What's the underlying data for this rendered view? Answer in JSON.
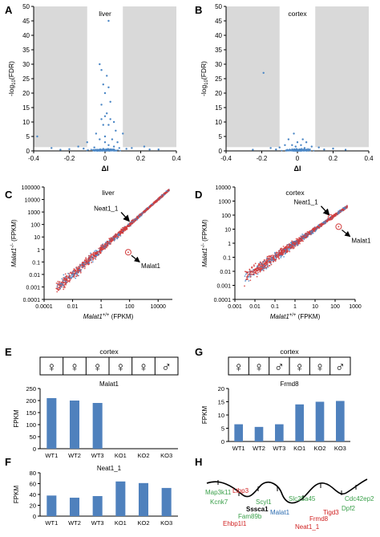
{
  "panel_letters": [
    "A",
    "B",
    "C",
    "D",
    "E",
    "G",
    "F",
    "H"
  ],
  "colors": {
    "point_blue": "#4a86c5",
    "point_red": "#d23c3c",
    "bar_blue": "#4f81bd",
    "shade": "#d9d9d9",
    "arrow": "#000000",
    "gene_red": "#d02020",
    "gene_green": "#3aa04a",
    "gene_blue": "#2a6bb0",
    "gene_black": "#000000"
  },
  "sex_symbols": {
    "female": "♀",
    "male": "♂"
  },
  "chart_data": [
    {
      "id": "A",
      "type": "scatter",
      "title": "liver",
      "xlabel": "ΔI",
      "ylabel": "-log10(FDR)",
      "ylabel_main": "-log",
      "ylabel_sub": "10",
      "ylabel_tail": "(FDR)",
      "xlim": [
        -0.4,
        0.4
      ],
      "ylim": [
        0,
        50
      ],
      "xticks": [
        -0.4,
        -0.2,
        0,
        0.2,
        0.4
      ],
      "yticks": [
        0,
        5,
        10,
        15,
        20,
        25,
        30,
        35,
        40,
        45,
        50
      ],
      "shaded_x": [
        [
          -0.4,
          -0.1
        ],
        [
          0.1,
          0.4
        ]
      ],
      "shade_ymin": 1.3,
      "points": [
        [
          0.02,
          45
        ],
        [
          -0.03,
          30
        ],
        [
          -0.02,
          28
        ],
        [
          0.01,
          26
        ],
        [
          -0.01,
          23
        ],
        [
          0.02,
          22
        ],
        [
          0.0,
          20
        ],
        [
          0.03,
          17
        ],
        [
          -0.02,
          16
        ],
        [
          0.01,
          13
        ],
        [
          0.0,
          12
        ],
        [
          -0.02,
          11
        ],
        [
          0.03,
          11
        ],
        [
          0.05,
          10
        ],
        [
          -0.01,
          9
        ],
        [
          0.02,
          9
        ],
        [
          0.06,
          7
        ],
        [
          -0.05,
          6
        ],
        [
          0.1,
          6
        ],
        [
          -0.38,
          5
        ],
        [
          0.0,
          5
        ],
        [
          0.04,
          4
        ],
        [
          -0.03,
          4
        ],
        [
          -0.1,
          3
        ],
        [
          0.07,
          3
        ],
        [
          0.0,
          3
        ],
        [
          0.02,
          2
        ],
        [
          -0.15,
          1.5
        ],
        [
          0.22,
          1.5
        ],
        [
          -0.3,
          1
        ],
        [
          0.15,
          1
        ],
        [
          0.05,
          1.5
        ],
        [
          -0.06,
          1.2
        ],
        [
          0.08,
          1
        ],
        [
          -0.2,
          0.6
        ],
        [
          0.3,
          0.5
        ],
        [
          -0.12,
          0.8
        ],
        [
          0.12,
          0.7
        ],
        [
          0.25,
          0.5
        ],
        [
          -0.25,
          0.4
        ]
      ]
    },
    {
      "id": "B",
      "type": "scatter",
      "title": "cortex",
      "xlabel": "ΔI",
      "ylabel": "-log10(FDR)",
      "ylabel_main": "-log",
      "ylabel_sub": "10",
      "ylabel_tail": "(FDR)",
      "xlim": [
        -0.4,
        0.4
      ],
      "ylim": [
        0,
        50
      ],
      "xticks": [
        -0.4,
        -0.2,
        0,
        0.2,
        0.4
      ],
      "yticks": [
        0,
        5,
        10,
        15,
        20,
        25,
        30,
        35,
        40,
        45,
        50
      ],
      "shaded_x": [
        [
          -0.4,
          -0.1
        ],
        [
          0.1,
          0.4
        ]
      ],
      "shade_ymin": 1.3,
      "points": [
        [
          -0.19,
          27
        ],
        [
          -0.02,
          6
        ],
        [
          0.03,
          4
        ],
        [
          -0.05,
          4
        ],
        [
          0.0,
          3
        ],
        [
          0.05,
          3
        ],
        [
          -0.03,
          2
        ],
        [
          0.02,
          2
        ],
        [
          -0.07,
          2
        ],
        [
          0.08,
          1.5
        ],
        [
          -0.1,
          1.2
        ],
        [
          0.12,
          1.2
        ],
        [
          -0.15,
          1
        ],
        [
          0.2,
          0.8
        ],
        [
          0.04,
          1
        ],
        [
          -0.01,
          1.5
        ],
        [
          0.06,
          0.6
        ],
        [
          -0.12,
          0.5
        ],
        [
          0.15,
          0.5
        ],
        [
          0.27,
          0.4
        ],
        [
          -0.25,
          0.4
        ]
      ]
    },
    {
      "id": "C",
      "type": "scatter",
      "title": "liver",
      "xlabel_sup": "+/+",
      "xlabel_tail": " (FPKM)",
      "ylabel_sup": "-/-",
      "ylabel_tail": " (FPKM)",
      "gene": "Malat1",
      "scale": "log",
      "xlim": [
        0.0001,
        100000
      ],
      "ylim": [
        0.0001,
        100000
      ],
      "xticks": [
        0.0001,
        0.01,
        1,
        100,
        10000
      ],
      "xticklabels": [
        "0.0001",
        "0.01",
        "1",
        "100",
        "10000"
      ],
      "yticks": [
        0.0001,
        0.001,
        0.01,
        0.1,
        1,
        10,
        100,
        1000,
        10000,
        100000
      ],
      "yticklabels": [
        "0.0001",
        "0.001",
        "0.01",
        "0.1",
        "1",
        "10",
        "100",
        "1000",
        "10000",
        "100000"
      ],
      "cloud_x_range": [
        0.0007,
        60000
      ],
      "annotations": [
        {
          "label": "Neat1_1",
          "x": 120,
          "y": 120,
          "arrow": true
        },
        {
          "label": "Malat1",
          "x": 80,
          "y": 0.6,
          "circle": true
        }
      ]
    },
    {
      "id": "D",
      "type": "scatter",
      "title": "cortex",
      "xlabel_sup": "+/+",
      "xlabel_tail": " (FPKM)",
      "ylabel_sup": "-/-",
      "ylabel_tail": " (FPKM)",
      "gene": "Malat1",
      "scale": "log",
      "xlim": [
        0.001,
        1000
      ],
      "ylim": [
        0.0001,
        10000
      ],
      "xticks": [
        0.001,
        0.01,
        0.1,
        1,
        10,
        100,
        1000
      ],
      "xticklabels": [
        "0.001",
        "0.01",
        "0.1",
        "1",
        "10",
        "100",
        "1000"
      ],
      "yticks": [
        0.0001,
        0.001,
        0.01,
        0.1,
        1,
        10,
        100,
        1000,
        10000
      ],
      "yticklabels": [
        "0.0001",
        "0.001",
        "0.01",
        "0.1",
        "1",
        "10",
        "100",
        "1000",
        "10000"
      ],
      "cloud_x_range": [
        0.003,
        400
      ],
      "annotations": [
        {
          "label": "Neat1_1",
          "x": 60,
          "y": 70,
          "arrow": true
        },
        {
          "label": "Malat1",
          "x": 150,
          "y": 15,
          "circle": true
        }
      ]
    },
    {
      "id": "E",
      "type": "bar",
      "title": "cortex",
      "subtitle": "Malat1",
      "sexes": [
        "female",
        "female",
        "female",
        "female",
        "female",
        "male"
      ],
      "categories": [
        "WT1",
        "WT2",
        "WT3",
        "KO1",
        "KO2",
        "KO3"
      ],
      "values": [
        210,
        200,
        190,
        0,
        0,
        0
      ],
      "ylabel": "FPKM",
      "ylim": [
        0,
        250
      ],
      "yticks": [
        0,
        50,
        100,
        150,
        200,
        250
      ]
    },
    {
      "id": "G",
      "type": "bar",
      "title": "cortex",
      "subtitle": "Frmd8",
      "sexes": [
        "female",
        "female",
        "male",
        "female",
        "female",
        "male"
      ],
      "categories": [
        "WT1",
        "WT2",
        "WT3",
        "KO1",
        "KO2",
        "KO3"
      ],
      "values": [
        6.5,
        5.5,
        6.5,
        14,
        15,
        15.3
      ],
      "ylabel": "FPKM",
      "ylim": [
        0,
        20
      ],
      "yticks": [
        0,
        5,
        10,
        15,
        20
      ]
    },
    {
      "id": "F",
      "type": "bar",
      "title": "",
      "subtitle": "Neat1_1",
      "categories": [
        "WT1",
        "WT2",
        "WT3",
        "KO1",
        "KO2",
        "KO3"
      ],
      "values": [
        38,
        34,
        37,
        64,
        61,
        52
      ],
      "ylabel": "FPKM",
      "ylim": [
        0,
        80
      ],
      "yticks": [
        0,
        20,
        40,
        60,
        80
      ]
    }
  ],
  "gene_map": {
    "genes": [
      {
        "label": "Map3k11",
        "color": "green"
      },
      {
        "label": "Kcnk7",
        "color": "green"
      },
      {
        "label": "Ltbp3",
        "color": "red"
      },
      {
        "label": "Scyl1",
        "color": "green"
      },
      {
        "label": "Fam89b",
        "color": "green"
      },
      {
        "label": "Sssca1",
        "color": "black"
      },
      {
        "label": "Ehbp1l1",
        "color": "red"
      },
      {
        "label": "Slc25a45",
        "color": "green"
      },
      {
        "label": "Malat1",
        "color": "blue"
      },
      {
        "label": "Tigd3",
        "color": "red"
      },
      {
        "label": "Frmd8",
        "color": "red"
      },
      {
        "label": "Neat1_1",
        "color": "red"
      },
      {
        "label": "Dpf2",
        "color": "green"
      },
      {
        "label": "Cdc42ep2",
        "color": "green"
      }
    ]
  }
}
